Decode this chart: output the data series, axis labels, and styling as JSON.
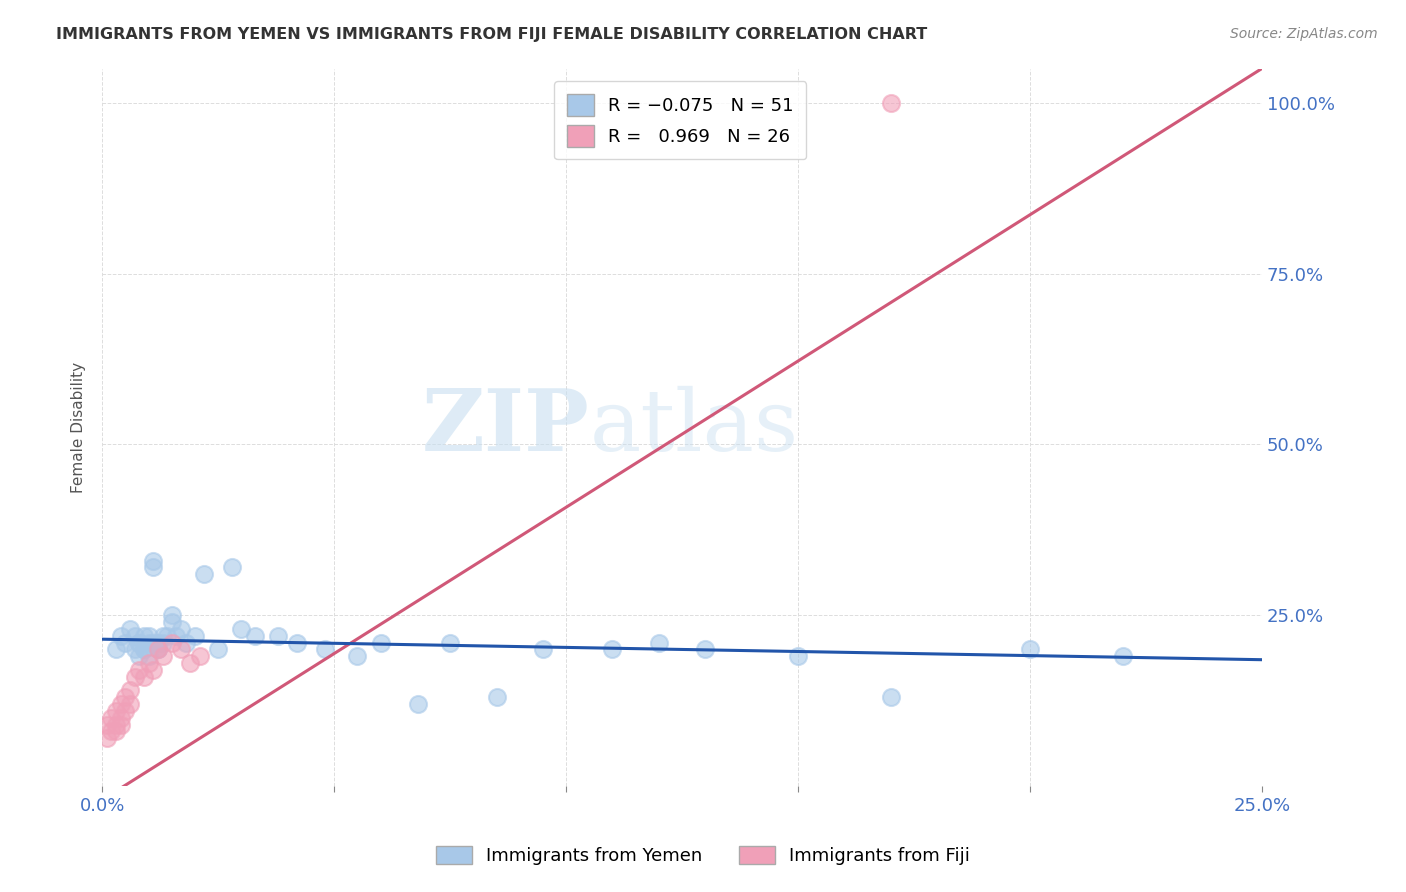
{
  "title": "IMMIGRANTS FROM YEMEN VS IMMIGRANTS FROM FIJI FEMALE DISABILITY CORRELATION CHART",
  "source": "Source: ZipAtlas.com",
  "ylabel": "Female Disability",
  "xlim": [
    0.0,
    0.25
  ],
  "ylim": [
    0.0,
    1.05
  ],
  "xticks": [
    0.0,
    0.05,
    0.1,
    0.15,
    0.2,
    0.25
  ],
  "yticks": [
    0.25,
    0.5,
    0.75,
    1.0
  ],
  "ytick_labels": [
    "25.0%",
    "50.0%",
    "75.0%",
    "100.0%"
  ],
  "xtick_labels": [
    "0.0%",
    "",
    "",
    "",
    "",
    "25.0%"
  ],
  "yemen_color": "#a8c8e8",
  "fiji_color": "#f0a0b8",
  "trendline_yemen_color": "#2255aa",
  "trendline_fiji_color": "#d05878",
  "watermark_zip": "ZIP",
  "watermark_atlas": "atlas",
  "yemen_x": [
    0.003,
    0.004,
    0.005,
    0.006,
    0.007,
    0.007,
    0.008,
    0.008,
    0.009,
    0.009,
    0.01,
    0.01,
    0.011,
    0.011,
    0.012,
    0.012,
    0.013,
    0.013,
    0.014,
    0.015,
    0.015,
    0.016,
    0.017,
    0.018,
    0.02,
    0.022,
    0.025,
    0.028,
    0.03,
    0.033,
    0.038,
    0.042,
    0.048,
    0.055,
    0.06,
    0.068,
    0.075,
    0.085,
    0.095,
    0.11,
    0.12,
    0.13,
    0.15,
    0.17,
    0.2,
    0.22,
    0.008,
    0.009,
    0.01,
    0.011,
    0.012
  ],
  "yemen_y": [
    0.2,
    0.22,
    0.21,
    0.23,
    0.2,
    0.22,
    0.21,
    0.19,
    0.2,
    0.22,
    0.21,
    0.19,
    0.32,
    0.33,
    0.21,
    0.2,
    0.22,
    0.21,
    0.22,
    0.25,
    0.24,
    0.22,
    0.23,
    0.21,
    0.22,
    0.31,
    0.2,
    0.32,
    0.23,
    0.22,
    0.22,
    0.21,
    0.2,
    0.19,
    0.21,
    0.12,
    0.21,
    0.13,
    0.2,
    0.2,
    0.21,
    0.2,
    0.19,
    0.13,
    0.2,
    0.19,
    0.21,
    0.2,
    0.22,
    0.21,
    0.2
  ],
  "fiji_x": [
    0.001,
    0.001,
    0.002,
    0.002,
    0.003,
    0.003,
    0.003,
    0.004,
    0.004,
    0.004,
    0.005,
    0.005,
    0.006,
    0.006,
    0.007,
    0.008,
    0.009,
    0.01,
    0.011,
    0.012,
    0.013,
    0.015,
    0.017,
    0.019,
    0.021,
    0.17
  ],
  "fiji_y": [
    0.07,
    0.09,
    0.08,
    0.1,
    0.09,
    0.11,
    0.08,
    0.1,
    0.12,
    0.09,
    0.13,
    0.11,
    0.14,
    0.12,
    0.16,
    0.17,
    0.16,
    0.18,
    0.17,
    0.2,
    0.19,
    0.21,
    0.2,
    0.18,
    0.19,
    1.0
  ],
  "trendline_fiji_x0": 0.0,
  "trendline_fiji_y0": -0.02,
  "trendline_fiji_x1": 0.25,
  "trendline_fiji_y1": 1.05,
  "trendline_yemen_x0": 0.0,
  "trendline_yemen_y0": 0.215,
  "trendline_yemen_x1": 0.25,
  "trendline_yemen_y1": 0.185
}
